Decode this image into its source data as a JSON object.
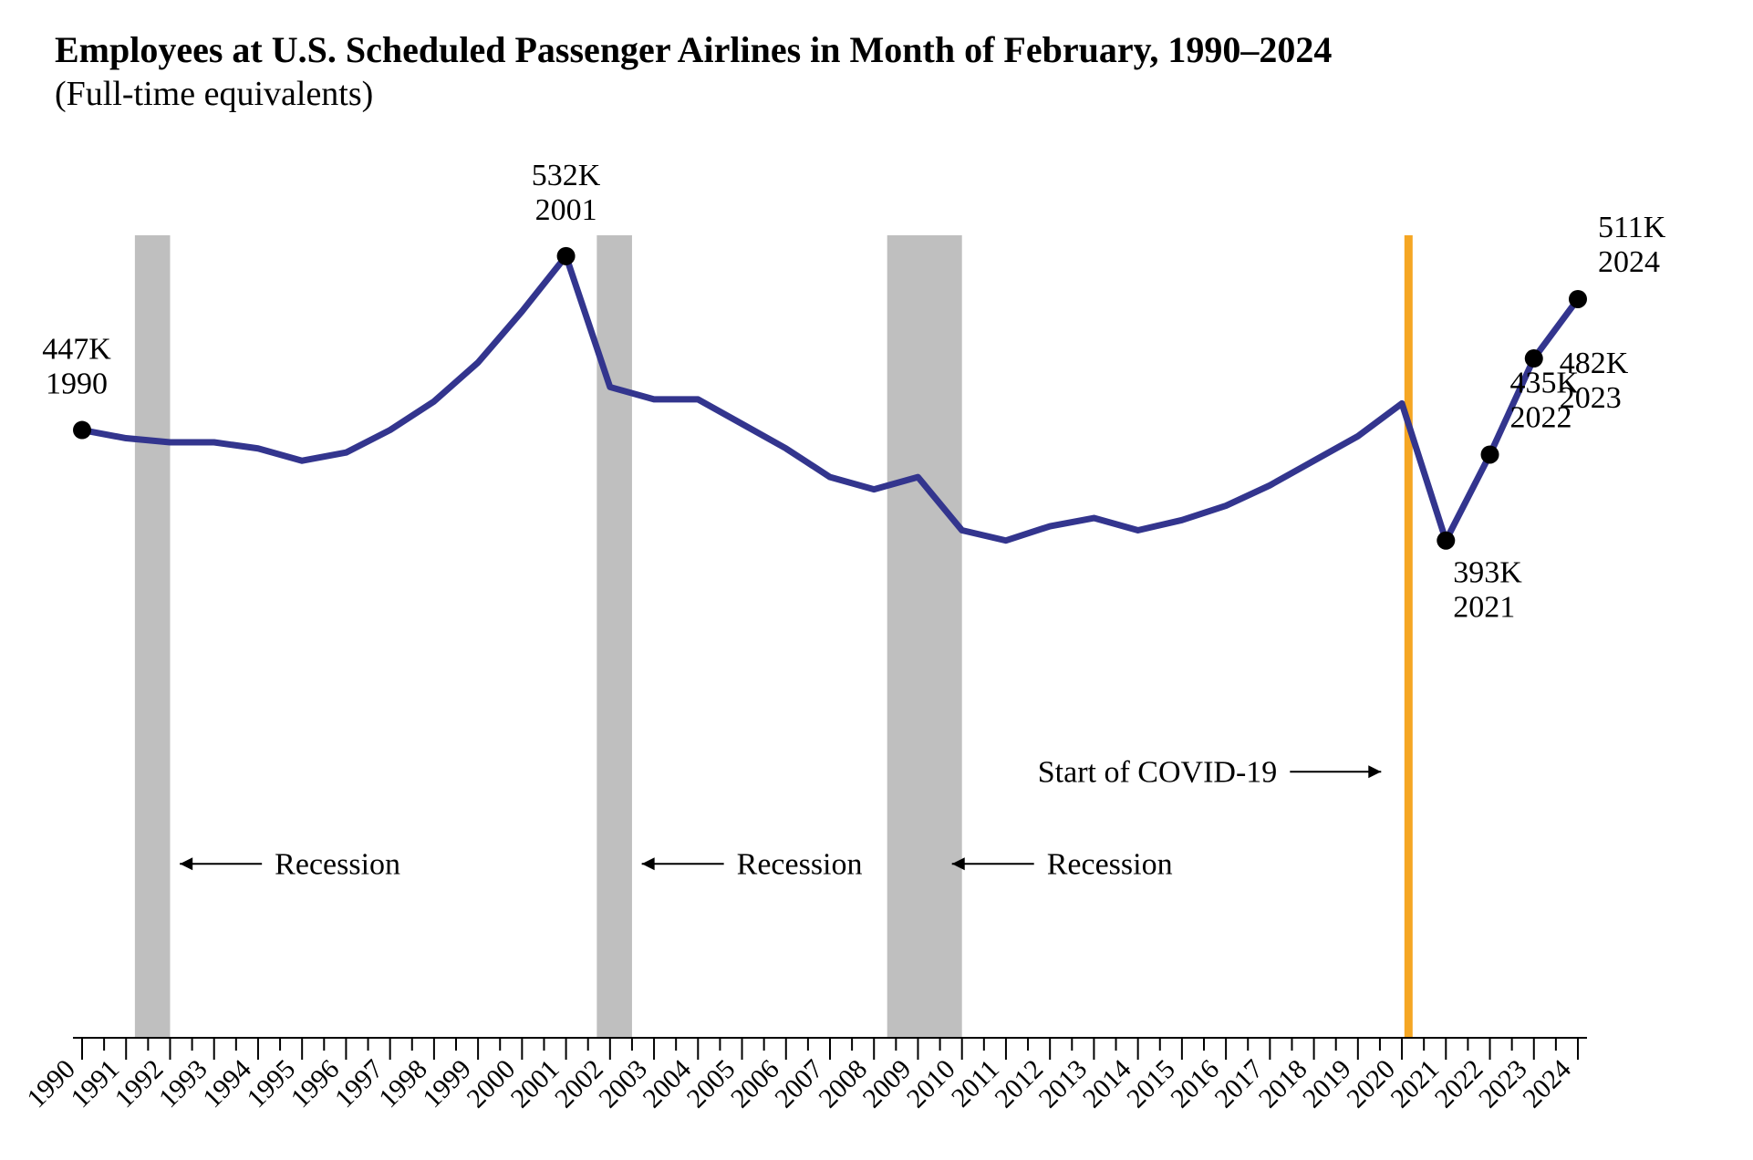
{
  "header": {
    "title": "Employees at U.S. Scheduled Passenger Airlines in Month of February, 1990–2024",
    "subtitle": "(Full-time equivalents)"
  },
  "chart": {
    "type": "line",
    "background_color": "#ffffff",
    "line_color": "#33358e",
    "line_width": 7,
    "marker_color": "#000000",
    "marker_radius": 10,
    "axis_color": "#000000",
    "axis_width": 2,
    "tick_length_major": 24,
    "tick_length_minor": 14,
    "tick_width": 2,
    "x_years": [
      1990,
      1991,
      1992,
      1993,
      1994,
      1995,
      1996,
      1997,
      1998,
      1999,
      2000,
      2001,
      2002,
      2003,
      2004,
      2005,
      2006,
      2007,
      2008,
      2009,
      2010,
      2011,
      2012,
      2013,
      2014,
      2015,
      2016,
      2017,
      2018,
      2019,
      2020,
      2021,
      2022,
      2023,
      2024
    ],
    "tick_label_fontsize": 30,
    "tick_label_rotation_deg": -45,
    "ylim": [
      150,
      560
    ],
    "series": [
      447,
      443,
      441,
      441,
      438,
      432,
      436,
      447,
      461,
      480,
      505,
      532,
      468,
      462,
      462,
      450,
      438,
      424,
      418,
      424,
      398,
      393,
      400,
      404,
      398,
      403,
      410,
      420,
      432,
      444,
      460,
      393,
      435,
      482,
      511
    ],
    "highlight_points": [
      {
        "year": 1990,
        "value": 447,
        "label_value": "447K",
        "label_year": "1990",
        "pos": "above-left"
      },
      {
        "year": 2001,
        "value": 532,
        "label_value": "532K",
        "label_year": "2001",
        "pos": "above"
      },
      {
        "year": 2021,
        "value": 393,
        "label_value": "393K",
        "label_year": "2021",
        "pos": "below"
      },
      {
        "year": 2022,
        "value": 435,
        "label_value": "435K",
        "label_year": "2022",
        "pos": "above-right"
      },
      {
        "year": 2023,
        "value": 482,
        "label_value": "482K",
        "label_year": "2023",
        "pos": "right"
      },
      {
        "year": 2024,
        "value": 511,
        "label_value": "511K",
        "label_year": "2024",
        "pos": "above-right"
      }
    ],
    "data_label_fontsize": 34,
    "recession_band_color": "#bfbfbf",
    "recession_bands": [
      {
        "start": 1991.2,
        "end": 1992.0
      },
      {
        "start": 2001.7,
        "end": 2002.5
      },
      {
        "start": 2008.3,
        "end": 2010.0
      }
    ],
    "recession_label": "Recession",
    "recession_label_y_value": 235,
    "recession_arrow_color": "#000000",
    "covid_line_year": 2020.15,
    "covid_line_color": "#f5a623",
    "covid_line_width": 9,
    "covid_label": "Start of COVID-19",
    "covid_label_y_value": 280,
    "anno_fontsize": 34
  }
}
